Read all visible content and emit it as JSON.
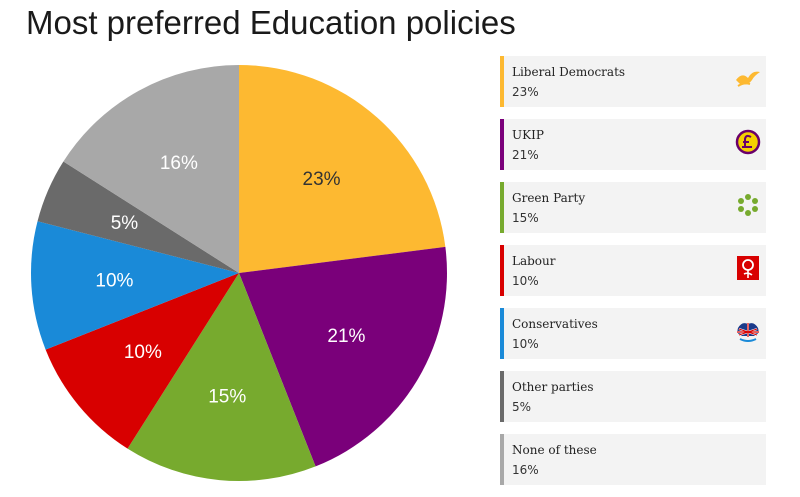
{
  "chart_data": {
    "type": "pie",
    "title": "Most preferred Education policies",
    "categories": [
      "Liberal Democrats",
      "UKIP",
      "Green Party",
      "Labour",
      "Conservatives",
      "Other parties",
      "None of these"
    ],
    "values": [
      23,
      21,
      15,
      10,
      10,
      5,
      16
    ],
    "labels": [
      "23%",
      "21%",
      "15%",
      "10%",
      "10%",
      "5%",
      "16%"
    ],
    "colors": [
      "#fdb931",
      "#7a007a",
      "#77aa2e",
      "#d80000",
      "#1a8ad8",
      "#6a6a6a",
      "#a8a8a8"
    ],
    "label_colors": [
      "#333333",
      "#ffffff",
      "#ffffff",
      "#ffffff",
      "#ffffff",
      "#ffffff",
      "#ffffff"
    ],
    "start_angle": "12 o'clock",
    "direction": "clockwise",
    "legend_position": "right"
  },
  "legend": {
    "items": [
      {
        "name": "Liberal Democrats",
        "value": "23%",
        "color": "#fdb931",
        "icon": "liberal-democrats-bird-icon"
      },
      {
        "name": "UKIP",
        "value": "21%",
        "color": "#7a007a",
        "icon": "ukip-pound-icon"
      },
      {
        "name": "Green Party",
        "value": "15%",
        "color": "#77aa2e",
        "icon": "green-party-flower-icon"
      },
      {
        "name": "Labour",
        "value": "10%",
        "color": "#d80000",
        "icon": "labour-rose-icon"
      },
      {
        "name": "Conservatives",
        "value": "10%",
        "color": "#1a8ad8",
        "icon": "conservatives-tree-icon"
      },
      {
        "name": "Other parties",
        "value": "5%",
        "color": "#6a6a6a",
        "icon": ""
      },
      {
        "name": "None of these",
        "value": "16%",
        "color": "#a8a8a8",
        "icon": ""
      }
    ]
  }
}
